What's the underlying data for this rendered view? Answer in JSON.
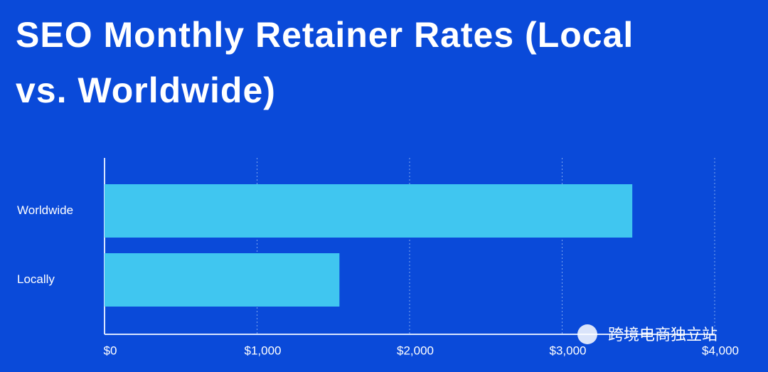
{
  "chart_data": {
    "type": "bar",
    "orientation": "horizontal",
    "title": "SEO Monthly Retainer Rates (Local vs. Worldwide)",
    "categories": [
      "Worldwide",
      "Locally"
    ],
    "values": [
      3460,
      1540
    ],
    "color": "#40c6f0",
    "xlim": [
      0,
      4000
    ],
    "xticks": [
      {
        "value": 0,
        "label": "$0"
      },
      {
        "value": 1000,
        "label": "$1,000"
      },
      {
        "value": 2000,
        "label": "$2,000"
      },
      {
        "value": 3000,
        "label": "$3,000"
      },
      {
        "value": 4000,
        "label": "$4,000"
      }
    ],
    "grid": true,
    "watermark": "跨境电商独立站"
  }
}
